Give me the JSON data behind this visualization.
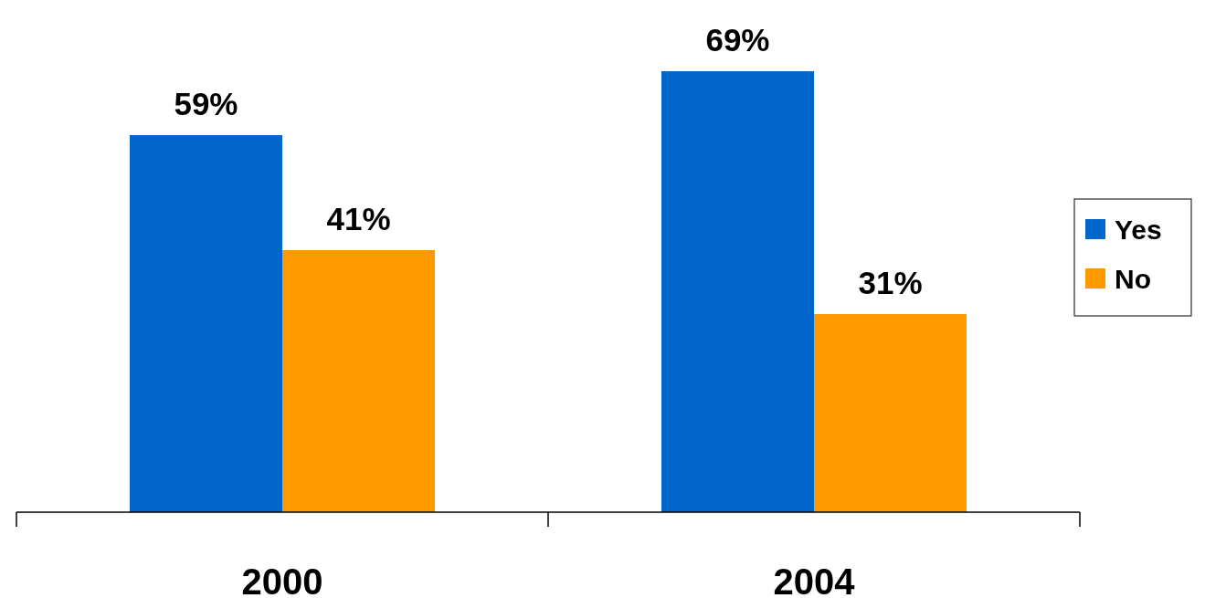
{
  "chart_data": {
    "type": "bar",
    "categories": [
      "2000",
      "2004"
    ],
    "series": [
      {
        "name": "Yes",
        "color": "#0066cc",
        "values": [
          59,
          69
        ],
        "value_labels": [
          "59%",
          "69%"
        ]
      },
      {
        "name": "No",
        "color": "#ff9900",
        "values": [
          41,
          31
        ],
        "value_labels": [
          "41%",
          "31%"
        ]
      }
    ],
    "legend": "right",
    "tick_labels": "x"
  }
}
